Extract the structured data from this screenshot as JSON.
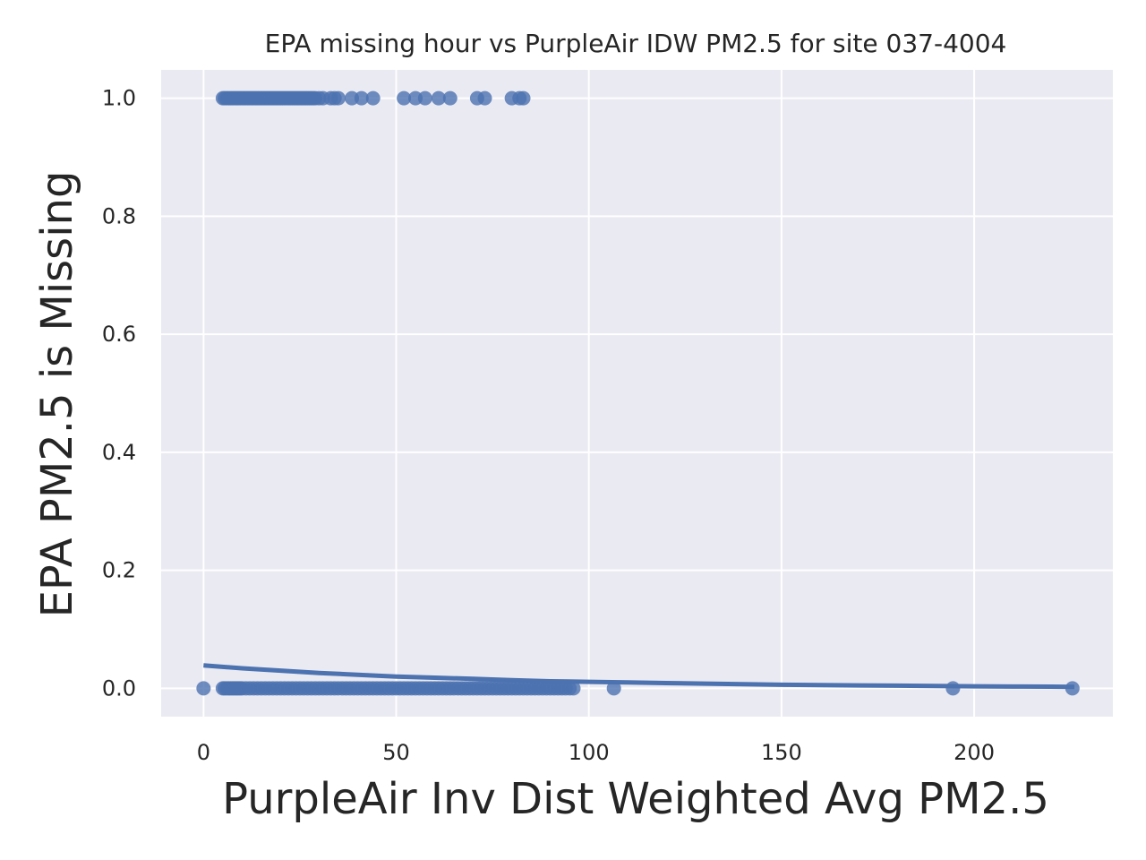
{
  "chart_data": {
    "type": "scatter",
    "title": "EPA missing hour vs PurpleAir IDW PM2.5 for site 037-4004",
    "xlabel": "PurpleAir Inv Dist Weighted Avg PM2.5",
    "ylabel": "EPA PM2.5 is Missing",
    "xlim": [
      -11,
      236
    ],
    "ylim": [
      -0.048,
      1.048
    ],
    "x_ticks": [
      0,
      50,
      100,
      150,
      200
    ],
    "x_tick_labels": [
      "0",
      "50",
      "100",
      "150",
      "200"
    ],
    "y_ticks": [
      0.0,
      0.2,
      0.4,
      0.6,
      0.8,
      1.0
    ],
    "y_tick_labels": [
      "0.0",
      "0.2",
      "0.4",
      "0.6",
      "0.8",
      "1.0"
    ],
    "grid": true,
    "legend": "none",
    "series": [
      {
        "marker": "circle",
        "points_missing": {
          "y": 1,
          "x": [
            5,
            5.5,
            6,
            6.5,
            7,
            7.5,
            8,
            8.5,
            9,
            9.5,
            10,
            10.5,
            11,
            11.5,
            12,
            12.5,
            13,
            13.5,
            14,
            14.5,
            15,
            15.5,
            16,
            16.5,
            17,
            17.5,
            18,
            18.5,
            19,
            19.5,
            20,
            20.5,
            21,
            21.5,
            22,
            22.5,
            23,
            23.5,
            24,
            24.5,
            25,
            25.5,
            26,
            26.5,
            27,
            27.5,
            28,
            28.5,
            29,
            30,
            31,
            33,
            34,
            35,
            38.5,
            41,
            44,
            52,
            55,
            57.5,
            61,
            64,
            71,
            73,
            80,
            82,
            83
          ]
        },
        "points_present": {
          "y": 0,
          "x": [
            0,
            5,
            5.5,
            6,
            6.5,
            7,
            7.5,
            8,
            8.5,
            9,
            9.5,
            10,
            11,
            12,
            13,
            14,
            15,
            16,
            17,
            18,
            19,
            20,
            21,
            22,
            23,
            24,
            25,
            26,
            27,
            28,
            29,
            30,
            31,
            32,
            33,
            34,
            35,
            36,
            37,
            38,
            39,
            40,
            41,
            42,
            43,
            44,
            45,
            46,
            47,
            48,
            49,
            50,
            51,
            52,
            53,
            54,
            55,
            56,
            57,
            58,
            59,
            60,
            61,
            62,
            63,
            64,
            65,
            66,
            67,
            68,
            69,
            70,
            71,
            72,
            73,
            74,
            75,
            76,
            77,
            78,
            79,
            80,
            81,
            82,
            83,
            84,
            85,
            86,
            87,
            88,
            89,
            90,
            91,
            92,
            93,
            94,
            95,
            96,
            106.5,
            194.5,
            225.5
          ]
        },
        "fit_curve": {
          "x": [
            0,
            10,
            20,
            30,
            40,
            50,
            60,
            70,
            80,
            90,
            100,
            110,
            120,
            130,
            140,
            150,
            160,
            170,
            180,
            190,
            200,
            210,
            220,
            226
          ],
          "y": [
            0.039,
            0.034,
            0.03,
            0.026,
            0.023,
            0.02,
            0.018,
            0.016,
            0.014,
            0.012,
            0.011,
            0.01,
            0.009,
            0.008,
            0.007,
            0.006,
            0.0055,
            0.005,
            0.0045,
            0.004,
            0.0035,
            0.003,
            0.0028,
            0.0026
          ]
        }
      }
    ],
    "colors": {
      "background": "#eaeaf2",
      "grid": "#ffffff",
      "marker": "#4c72b0",
      "line": "#4c72b0"
    }
  }
}
